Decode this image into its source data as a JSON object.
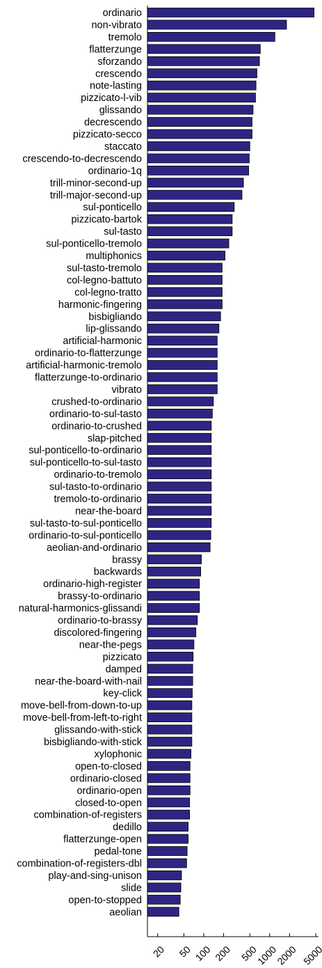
{
  "chart_data": {
    "type": "bar",
    "orientation": "horizontal",
    "x_scale": "log",
    "xlim": [
      14,
      5500
    ],
    "xticks": [
      20,
      50,
      100,
      200,
      500,
      1000,
      2000,
      5000
    ],
    "xtick_labels": [
      "20",
      "50",
      "100",
      "200",
      "500",
      "1000",
      "2000",
      "5000"
    ],
    "grid": false,
    "bar_color": "#2e2583",
    "categories": [
      "ordinario",
      "non-vibrato",
      "tremolo",
      "flatterzunge",
      "sforzando",
      "crescendo",
      "note-lasting",
      "pizzicato-l-vib",
      "glissando",
      "decrescendo",
      "pizzicato-secco",
      "staccato",
      "crescendo-to-decrescendo",
      "ordinario-1q",
      "trill-minor-second-up",
      "trill-major-second-up",
      "sul-ponticello",
      "pizzicato-bartok",
      "sul-tasto",
      "sul-ponticello-tremolo",
      "multiphonics",
      "sul-tasto-tremolo",
      "col-legno-battuto",
      "col-legno-tratto",
      "harmonic-fingering",
      "bisbigliando",
      "lip-glissando",
      "artificial-harmonic",
      "ordinario-to-flatterzunge",
      "artificial-harmonic-tremolo",
      "flatterzunge-to-ordinario",
      "vibrato",
      "crushed-to-ordinario",
      "ordinario-to-sul-tasto",
      "ordinario-to-crushed",
      "slap-pitched",
      "sul-ponticello-to-ordinario",
      "sul-ponticello-to-sul-tasto",
      "ordinario-to-tremolo",
      "sul-tasto-to-ordinario",
      "tremolo-to-ordinario",
      "near-the-board",
      "sul-tasto-to-sul-ponticello",
      "ordinario-to-sul-ponticello",
      "aeolian-and-ordinario",
      "brassy",
      "backwards",
      "ordinario-high-register",
      "brassy-to-ordinario",
      "natural-harmonics-glissandi",
      "ordinario-to-brassy",
      "discolored-fingering",
      "near-the-pegs",
      "pizzicato",
      "damped",
      "near-the-board-with-nail",
      "key-click",
      "move-bell-from-down-to-up",
      "move-bell-from-left-to-right",
      "glissando-with-stick",
      "bisbigliando-with-stick",
      "xylophonic",
      "open-to-closed",
      "ordinario-closed",
      "ordinario-open",
      "closed-to-open",
      "combination-of-registers",
      "dedillo",
      "flatterzunge-open",
      "pedal-tone",
      "combination-of-registers-dbl",
      "play-and-sing-unison",
      "slide",
      "open-to-stopped",
      "aeolian"
    ],
    "values": [
      4700,
      1800,
      1200,
      720,
      700,
      640,
      620,
      610,
      560,
      540,
      540,
      500,
      490,
      480,
      400,
      380,
      290,
      270,
      270,
      240,
      210,
      190,
      190,
      190,
      190,
      180,
      170,
      160,
      160,
      160,
      160,
      160,
      140,
      135,
      130,
      130,
      130,
      130,
      130,
      130,
      130,
      130,
      130,
      128,
      125,
      92,
      90,
      86,
      86,
      86,
      80,
      76,
      71,
      69,
      68,
      68,
      67,
      66,
      66,
      66,
      66,
      64,
      62,
      62,
      62,
      61,
      61,
      58,
      58,
      56,
      55,
      46,
      45,
      44,
      42
    ]
  }
}
